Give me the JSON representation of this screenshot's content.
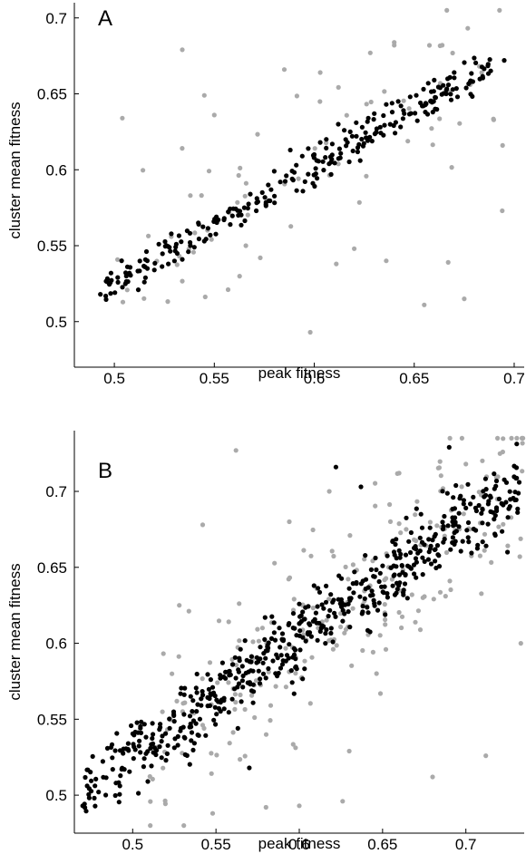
{
  "chart_data": [
    {
      "type": "scatter",
      "panel": "A",
      "xlabel": "peak fitness",
      "ylabel": "cluster mean fitness",
      "xlim": [
        0.48,
        0.705
      ],
      "ylim": [
        0.47,
        0.71
      ],
      "xticks": [
        "0.5",
        "0.55",
        "0.6",
        "0.65",
        "0.7"
      ],
      "yticks": [
        "0.5",
        "0.55",
        "0.6",
        "0.65",
        "0.7"
      ],
      "xtick_values": [
        0.5,
        0.55,
        0.6,
        0.65,
        0.7
      ],
      "ytick_values": [
        0.5,
        0.55,
        0.6,
        0.65,
        0.7
      ],
      "grid": false,
      "series": [
        {
          "color": "#000000",
          "trend": {
            "x_from": 0.493,
            "x_to": 0.695,
            "slope": 0.76,
            "intercept": 0.145,
            "spread": 0.009
          },
          "points": [
            [
              0.493,
              0.518
            ],
            [
              0.506,
              0.53
            ],
            [
              0.512,
              0.521
            ],
            [
              0.515,
              0.526
            ],
            [
              0.52,
              0.534
            ],
            [
              0.527,
              0.538
            ],
            [
              0.531,
              0.551
            ],
            [
              0.534,
              0.541
            ],
            [
              0.537,
              0.546
            ],
            [
              0.54,
              0.549
            ],
            [
              0.542,
              0.565
            ],
            [
              0.545,
              0.553
            ],
            [
              0.548,
              0.557
            ],
            [
              0.552,
              0.567
            ],
            [
              0.555,
              0.568
            ],
            [
              0.558,
              0.564
            ],
            [
              0.562,
              0.57
            ],
            [
              0.565,
              0.575
            ],
            [
              0.568,
              0.584
            ],
            [
              0.571,
              0.573
            ],
            [
              0.574,
              0.585
            ],
            [
              0.577,
              0.59
            ],
            [
              0.58,
              0.599
            ],
            [
              0.583,
              0.592
            ],
            [
              0.586,
              0.596
            ],
            [
              0.588,
              0.613
            ],
            [
              0.591,
              0.603
            ],
            [
              0.594,
              0.609
            ],
            [
              0.597,
              0.614
            ],
            [
              0.6,
              0.61
            ],
            [
              0.603,
              0.618
            ],
            [
              0.606,
              0.62
            ],
            [
              0.609,
              0.617
            ],
            [
              0.612,
              0.63
            ],
            [
              0.615,
              0.626
            ],
            [
              0.618,
              0.625
            ],
            [
              0.621,
              0.631
            ],
            [
              0.624,
              0.628
            ],
            [
              0.627,
              0.634
            ],
            [
              0.63,
              0.637
            ],
            [
              0.633,
              0.628
            ],
            [
              0.636,
              0.643
            ],
            [
              0.639,
              0.638
            ],
            [
              0.642,
              0.645
            ],
            [
              0.645,
              0.637
            ],
            [
              0.648,
              0.648
            ],
            [
              0.651,
              0.649
            ],
            [
              0.654,
              0.642
            ],
            [
              0.657,
              0.657
            ],
            [
              0.66,
              0.659
            ],
            [
              0.663,
              0.654
            ],
            [
              0.666,
              0.65
            ],
            [
              0.67,
              0.664
            ],
            [
              0.695,
              0.672
            ]
          ]
        },
        {
          "color": "#aaaaaa",
          "trend": {
            "x_from": 0.5,
            "x_to": 0.695,
            "slope": 0.76,
            "intercept": 0.145,
            "spread": 0.05
          },
          "points": [
            [
              0.504,
              0.634
            ],
            [
              0.534,
              0.679
            ],
            [
              0.545,
              0.649
            ],
            [
              0.55,
              0.636
            ],
            [
              0.585,
              0.666
            ],
            [
              0.598,
              0.493
            ],
            [
              0.62,
              0.548
            ],
            [
              0.64,
              0.682
            ],
            [
              0.655,
              0.511
            ],
            [
              0.675,
              0.515
            ],
            [
              0.678,
              0.656
            ],
            [
              0.694,
              0.573
            ],
            [
              0.636,
              0.54
            ],
            [
              0.628,
              0.677
            ],
            [
              0.664,
              0.682
            ],
            [
              0.538,
              0.583
            ],
            [
              0.573,
              0.542
            ],
            [
              0.611,
              0.538
            ],
            [
              0.667,
              0.539
            ],
            [
              0.603,
              0.664
            ]
          ]
        }
      ]
    },
    {
      "type": "scatter",
      "panel": "B",
      "xlabel": "peak fitness",
      "ylabel": "cluster mean fitness",
      "xlim": [
        0.465,
        0.735
      ],
      "ylim": [
        0.475,
        0.74
      ],
      "xticks": [
        "0.5",
        "0.55",
        "0.6",
        "0.65",
        "0.7"
      ],
      "yticks": [
        "0.5",
        "0.55",
        "0.6",
        "0.65",
        "0.7"
      ],
      "xtick_values": [
        0.5,
        0.55,
        0.6,
        0.65,
        0.7
      ],
      "ytick_values": [
        0.5,
        0.55,
        0.6,
        0.65,
        0.7
      ],
      "grid": false,
      "series": [
        {
          "color": "#000000",
          "trend": {
            "x_from": 0.47,
            "x_to": 0.732,
            "slope": 0.78,
            "intercept": 0.135,
            "spread": 0.022
          },
          "points": [
            [
              0.47,
              0.493
            ],
            [
              0.488,
              0.517
            ],
            [
              0.49,
              0.508
            ],
            [
              0.495,
              0.517
            ],
            [
              0.505,
              0.541
            ],
            [
              0.52,
              0.523
            ],
            [
              0.535,
              0.545
            ],
            [
              0.548,
              0.571
            ],
            [
              0.56,
              0.586
            ],
            [
              0.57,
              0.518
            ],
            [
              0.58,
              0.595
            ],
            [
              0.59,
              0.602
            ],
            [
              0.6,
              0.613
            ],
            [
              0.61,
              0.62
            ],
            [
              0.62,
              0.627
            ],
            [
              0.63,
              0.636
            ],
            [
              0.64,
              0.642
            ],
            [
              0.65,
              0.651
            ],
            [
              0.66,
              0.661
            ],
            [
              0.67,
              0.662
            ],
            [
              0.68,
              0.668
            ],
            [
              0.69,
              0.729
            ],
            [
              0.7,
              0.689
            ],
            [
              0.71,
              0.688
            ],
            [
              0.72,
              0.695
            ],
            [
              0.725,
              0.66
            ],
            [
              0.732,
              0.706
            ],
            [
              0.622,
              0.716
            ],
            [
              0.637,
              0.703
            ]
          ]
        },
        {
          "color": "#aaaaaa",
          "trend": {
            "x_from": 0.51,
            "x_to": 0.735,
            "slope": 0.78,
            "intercept": 0.135,
            "spread": 0.055
          },
          "points": [
            [
              0.548,
              0.488
            ],
            [
              0.562,
              0.727
            ],
            [
              0.58,
              0.492
            ],
            [
              0.6,
              0.493
            ],
            [
              0.618,
              0.7
            ],
            [
              0.626,
              0.496
            ],
            [
              0.652,
              0.596
            ],
            [
              0.68,
              0.512
            ],
            [
              0.712,
              0.526
            ],
            [
              0.733,
              0.6
            ],
            [
              0.7,
              0.718
            ],
            [
              0.528,
              0.625
            ],
            [
              0.542,
              0.678
            ],
            [
              0.594,
              0.68
            ],
            [
              0.63,
              0.529
            ]
          ]
        }
      ]
    }
  ],
  "panels": [
    {
      "letter": "A",
      "xlabel": "peak fitness",
      "ylabel": "cluster mean fitness"
    },
    {
      "letter": "B",
      "xlabel": "peak fitness",
      "ylabel": "cluster mean fitness"
    }
  ]
}
